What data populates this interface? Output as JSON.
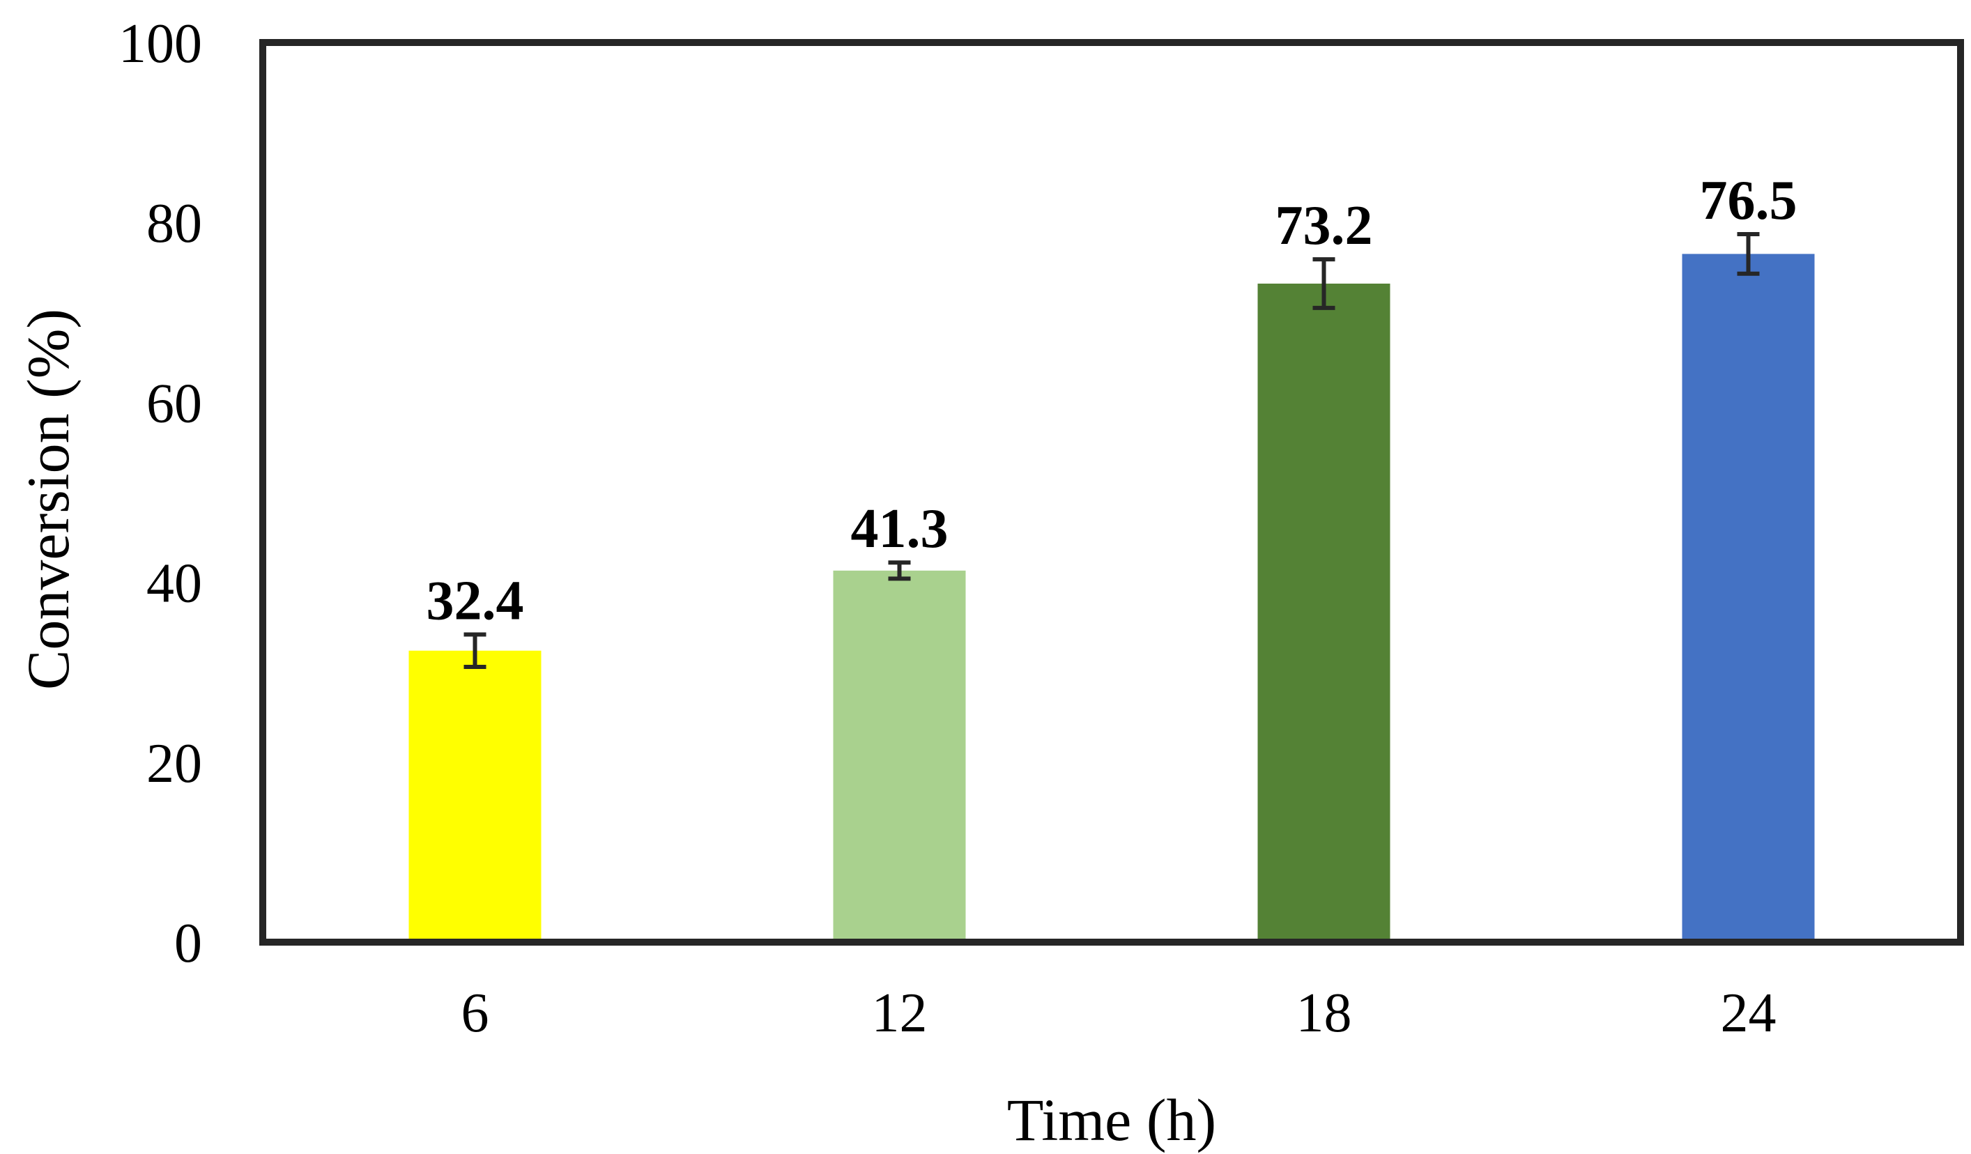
{
  "chart_data": {
    "type": "bar",
    "categories": [
      "6",
      "12",
      "18",
      "24"
    ],
    "values": [
      32.4,
      41.3,
      73.2,
      76.5
    ],
    "error": [
      1.8,
      0.9,
      2.7,
      2.2
    ],
    "data_labels": [
      "32.4",
      "41.3",
      "73.2",
      "76.5"
    ],
    "colors": [
      "#FFFF00",
      "#A9D18E",
      "#548235",
      "#4472C4"
    ],
    "xlabel": "Time (h)",
    "ylabel": "Conversion (%)",
    "ylim": [
      0,
      100
    ],
    "yticks": [
      "0",
      "20",
      "40",
      "60",
      "80",
      "100"
    ],
    "grid": false
  }
}
